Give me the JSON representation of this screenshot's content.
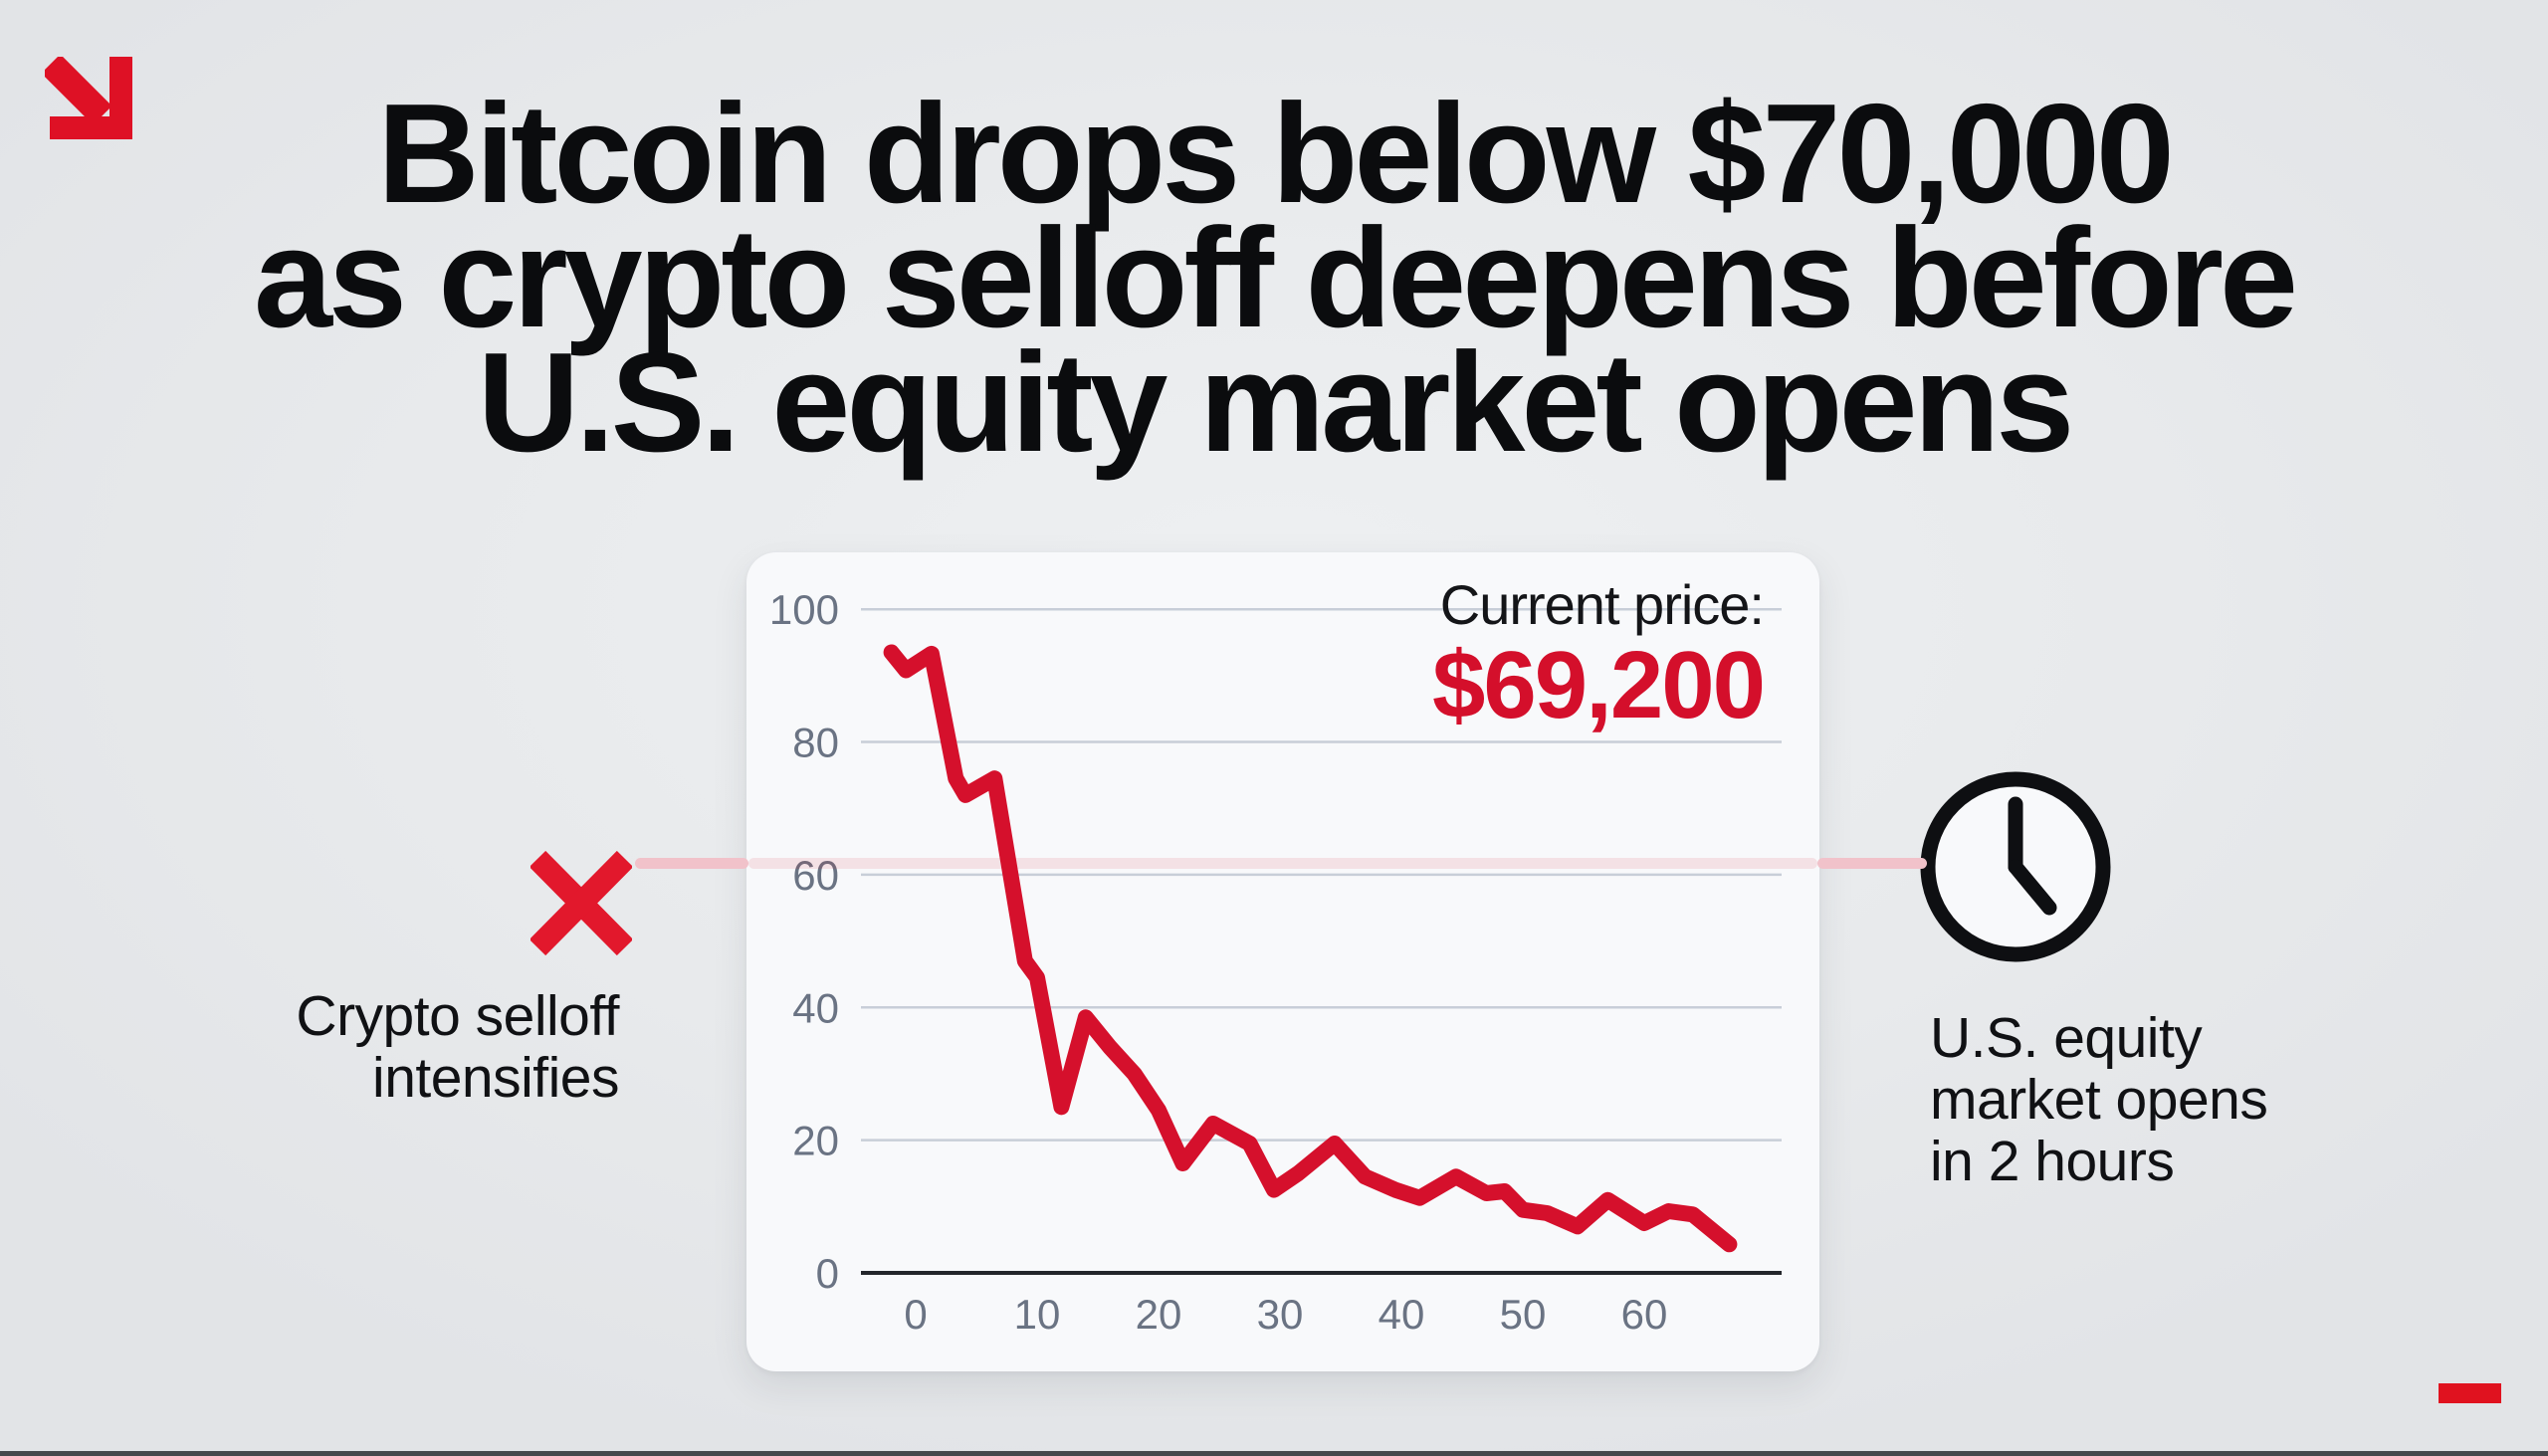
{
  "page": {
    "background": "#e8eaec",
    "bottom_bar_color": "#46494d"
  },
  "decor": {
    "arrow_icon": "arrow-down-right-icon",
    "arrow_color": "#de1125",
    "corner_dash_color": "#e0121f",
    "connector_color": "#f1c2ca"
  },
  "headline": {
    "lines": [
      "Bitcoin drops below $70,000",
      "as crypto selloff deepens before",
      "U.S. equity market opens"
    ],
    "color": "#0b0c0e"
  },
  "price": {
    "label": "Current price:",
    "value": "$69,200",
    "label_color": "#141518",
    "value_color": "#d40f2b"
  },
  "left_callout": {
    "icon": "x-icon",
    "icon_color": "#e2182c",
    "lines": [
      "Crypto selloff",
      "intensifies"
    ]
  },
  "right_callout": {
    "icon": "clock-icon",
    "icon_color": "#0e0f12",
    "lines": [
      "U.S. equity",
      "market opens",
      "in 2 hours"
    ]
  },
  "chart_data": {
    "type": "line",
    "title": "",
    "xlabel": "",
    "ylabel": "",
    "x_ticks": [
      0,
      10,
      20,
      30,
      40,
      50,
      60
    ],
    "y_ticks": [
      0,
      20,
      40,
      60,
      80,
      100
    ],
    "xlim": [
      -5,
      72
    ],
    "ylim": [
      0,
      100
    ],
    "grid": "horizontal",
    "legend": "none",
    "series": [
      [
        -2,
        93.5
      ],
      [
        -0.8,
        90.8
      ],
      [
        1.3,
        93.3
      ],
      [
        3.3,
        74.5
      ],
      [
        4.1,
        72
      ],
      [
        6.5,
        74.5
      ],
      [
        9,
        47
      ],
      [
        10,
        44.5
      ],
      [
        12,
        25
      ],
      [
        14,
        38.5
      ],
      [
        16,
        34
      ],
      [
        18,
        30
      ],
      [
        20,
        24.5
      ],
      [
        22,
        16.5
      ],
      [
        24.5,
        22.5
      ],
      [
        26,
        21
      ],
      [
        27.5,
        19.5
      ],
      [
        29.5,
        12.5
      ],
      [
        31.5,
        15
      ],
      [
        34.5,
        19.5
      ],
      [
        37,
        14.5
      ],
      [
        39.5,
        12.5
      ],
      [
        41.5,
        11.3
      ],
      [
        44.5,
        14.5
      ],
      [
        47,
        12
      ],
      [
        48.5,
        12.3
      ],
      [
        50,
        9.5
      ],
      [
        52,
        9
      ],
      [
        54.5,
        7
      ],
      [
        57,
        11
      ],
      [
        60,
        7.5
      ],
      [
        62,
        9.3
      ],
      [
        64,
        8.8
      ],
      [
        67,
        4.3
      ]
    ],
    "line_color": "#d5102c",
    "grid_color": "#c8ced8",
    "axis_color": "#23262b",
    "tick_color": "#6a7383"
  }
}
